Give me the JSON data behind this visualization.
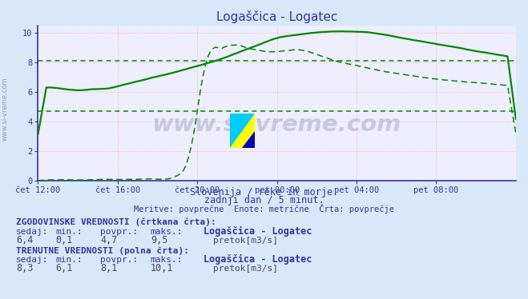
{
  "title": "Logaščica - Logatec",
  "bg_color": "#d8e8f8",
  "plot_bg": "#eeeeff",
  "grid_color": "#ffaaaa",
  "line_color": "#008800",
  "text_color": "#333399",
  "val_color": "#444466",
  "dashed_hline1": 8.1,
  "dashed_hline2": 4.7,
  "xlabel_ticks": [
    "čet 12:00",
    "čet 16:00",
    "čet 20:00",
    "pet 00:00",
    "pet 04:00",
    "pet 08:00"
  ],
  "ylim": [
    0,
    10.5
  ],
  "xlim": [
    0,
    288
  ],
  "xtick_positions": [
    0,
    48,
    96,
    144,
    192,
    240
  ],
  "ytick_positions": [
    0,
    2,
    4,
    6,
    8,
    10
  ],
  "subtitle1": "Slovenija / reke in morje.",
  "subtitle2": "zadnji dan / 5 minut.",
  "subtitle3": "Meritve: povprečne  Enote: metrične  Črta: povprečje",
  "hist_label": "ZGODOVINSKE VREDNOSTI (črtkana črta):",
  "curr_label": "TRENUTNE VREDNOSTI (polna črta):",
  "col_headers": [
    "sedaj:",
    "min.:",
    "povpr.:",
    "maks.:"
  ],
  "hist_vals": [
    "6,4",
    "0,1",
    "4,7",
    "9,5"
  ],
  "curr_vals": [
    "8,3",
    "6,1",
    "8,1",
    "10,1"
  ],
  "station_name": "Logaščica - Logatec",
  "unit_label": "pretok[m3/s]",
  "watermark": "www.si-vreme.com",
  "side_label": "www.si-vreme.com",
  "sq1_color": "#00cc00",
  "sq2_color": "#00ff00"
}
